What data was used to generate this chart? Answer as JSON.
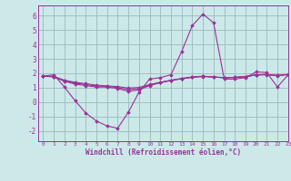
{
  "xlabel": "Windchill (Refroidissement éolien,°C)",
  "xlim": [
    -0.5,
    23
  ],
  "ylim": [
    -2.7,
    6.7
  ],
  "yticks": [
    -2,
    -1,
    0,
    1,
    2,
    3,
    4,
    5,
    6
  ],
  "xticks": [
    0,
    1,
    2,
    3,
    4,
    5,
    6,
    7,
    8,
    9,
    10,
    11,
    12,
    13,
    14,
    15,
    16,
    17,
    18,
    19,
    20,
    21,
    22,
    23
  ],
  "bg_color": "#cce8e8",
  "line_color": "#993399",
  "grid_color": "#99bbbb",
  "series": [
    [
      1.8,
      1.9,
      1.05,
      0.1,
      -0.75,
      -1.3,
      -1.65,
      -1.8,
      -0.7,
      0.7,
      1.6,
      1.7,
      1.9,
      3.5,
      5.3,
      6.1,
      5.5,
      1.6,
      1.6,
      1.7,
      2.1,
      2.05,
      1.05,
      1.9
    ],
    [
      1.8,
      1.75,
      1.45,
      1.25,
      1.15,
      1.05,
      1.05,
      0.95,
      0.75,
      0.85,
      1.15,
      1.35,
      1.5,
      1.65,
      1.75,
      1.8,
      1.75,
      1.7,
      1.72,
      1.78,
      1.9,
      1.92,
      1.85,
      1.92
    ],
    [
      1.8,
      1.78,
      1.52,
      1.38,
      1.28,
      1.18,
      1.13,
      1.08,
      0.98,
      1.02,
      1.22,
      1.38,
      1.52,
      1.62,
      1.72,
      1.78,
      1.74,
      1.7,
      1.72,
      1.78,
      1.88,
      1.9,
      1.84,
      1.92
    ],
    [
      1.8,
      1.77,
      1.49,
      1.32,
      1.22,
      1.12,
      1.09,
      1.02,
      0.87,
      0.94,
      1.18,
      1.36,
      1.51,
      1.63,
      1.73,
      1.79,
      1.745,
      1.685,
      1.71,
      1.76,
      1.89,
      1.91,
      1.845,
      1.91
    ]
  ]
}
